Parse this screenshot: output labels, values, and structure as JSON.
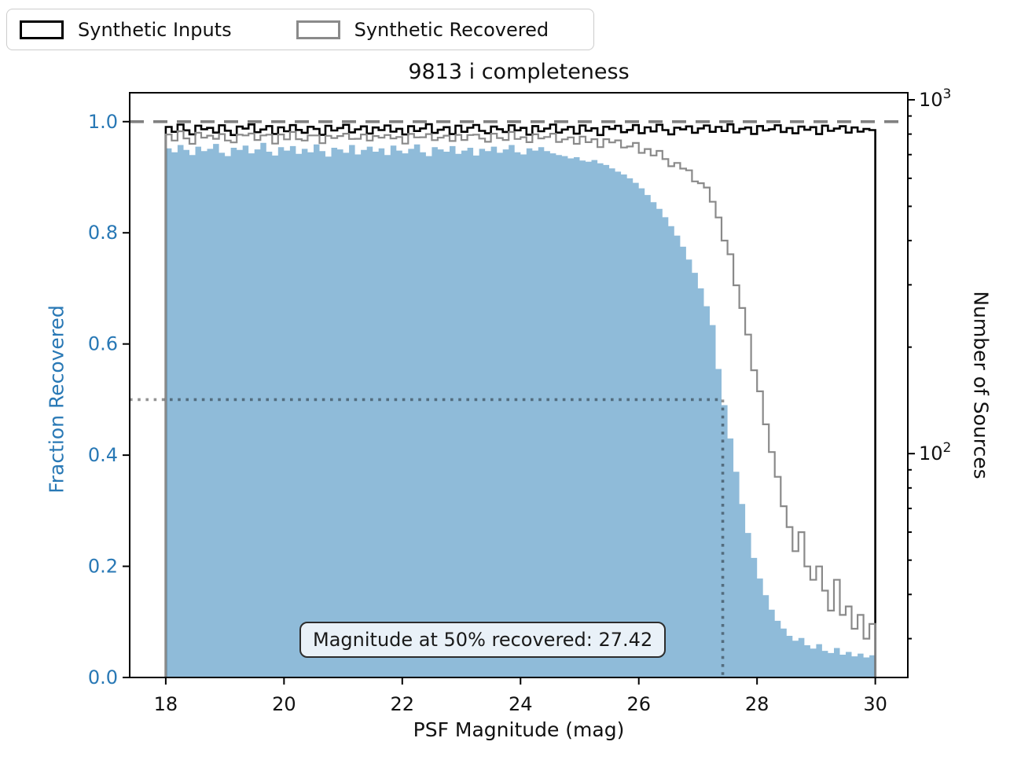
{
  "title": "9813 i completeness",
  "legend": {
    "items": [
      {
        "label": "Synthetic Inputs",
        "color": "#000000"
      },
      {
        "label": "Synthetic Recovered",
        "color": "#8a8a8a"
      }
    ]
  },
  "axes": {
    "x": {
      "label": "PSF Magnitude (mag)",
      "ticks": [
        18,
        20,
        22,
        24,
        26,
        28,
        30
      ],
      "range": [
        17.39,
        30.55
      ]
    },
    "y_left": {
      "label": "Fraction Recovered",
      "ticks": [
        0.0,
        0.2,
        0.4,
        0.6,
        0.8,
        1.0
      ],
      "range": [
        0,
        1.052
      ],
      "color": "#2878b5"
    },
    "y_right": {
      "label": "Number of Sources",
      "scale": "log",
      "range": [
        23.3,
        1047
      ],
      "major_ticks": [
        {
          "value": 1000,
          "base": "10",
          "exp": "3"
        },
        {
          "value": 100,
          "base": "10",
          "exp": "2"
        }
      ],
      "minor_ticks": [
        900,
        800,
        700,
        600,
        500,
        400,
        300,
        200,
        90,
        80,
        70,
        60,
        50,
        40,
        30,
        20
      ]
    }
  },
  "chart_data": {
    "type": "bar",
    "subtype": "histogram-with-step-outlines",
    "bins": {
      "start": 18.0,
      "width": 0.1,
      "count": 120
    },
    "series": [
      {
        "name": "Fraction Recovered",
        "axis": "left",
        "style": "filled-bar",
        "color": "#8FBBD9",
        "values": [
          0.952,
          0.945,
          0.958,
          0.949,
          0.94,
          0.955,
          0.947,
          0.951,
          0.96,
          0.944,
          0.938,
          0.953,
          0.949,
          0.957,
          0.943,
          0.95,
          0.962,
          0.946,
          0.939,
          0.954,
          0.948,
          0.956,
          0.942,
          0.951,
          0.945,
          0.959,
          0.947,
          0.937,
          0.953,
          0.95,
          0.944,
          0.958,
          0.941,
          0.949,
          0.955,
          0.946,
          0.952,
          0.94,
          0.957,
          0.948,
          0.943,
          0.951,
          0.959,
          0.945,
          0.938,
          0.954,
          0.95,
          0.946,
          0.956,
          0.942,
          0.948,
          0.953,
          0.939,
          0.951,
          0.947,
          0.955,
          0.944,
          0.95,
          0.958,
          0.945,
          0.941,
          0.952,
          0.948,
          0.954,
          0.947,
          0.943,
          0.94,
          0.938,
          0.934,
          0.936,
          0.93,
          0.928,
          0.931,
          0.925,
          0.922,
          0.916,
          0.91,
          0.905,
          0.898,
          0.89,
          0.88,
          0.868,
          0.855,
          0.843,
          0.828,
          0.812,
          0.795,
          0.775,
          0.752,
          0.728,
          0.7,
          0.668,
          0.634,
          0.555,
          0.49,
          0.43,
          0.37,
          0.312,
          0.26,
          0.215,
          0.178,
          0.148,
          0.122,
          0.102,
          0.088,
          0.075,
          0.066,
          0.071,
          0.058,
          0.052,
          0.06,
          0.048,
          0.044,
          0.053,
          0.041,
          0.046,
          0.038,
          0.043,
          0.036,
          0.04
        ]
      },
      {
        "name": "Synthetic Inputs",
        "axis": "right",
        "style": "step",
        "color": "#000000",
        "values": [
          838,
          812,
          851,
          820,
          799,
          845,
          826,
          833,
          808,
          847,
          818,
          795,
          840,
          829,
          852,
          810,
          824,
          843,
          801,
          836,
          815,
          848,
          822,
          807,
          839,
          827,
          796,
          844,
          819,
          832,
          850,
          809,
          825,
          841,
          803,
          835,
          821,
          846,
          813,
          828,
          798,
          842,
          816,
          830,
          853,
          806,
          823,
          837,
          800,
          845,
          812,
          834,
          849,
          817,
          804,
          840,
          826,
          811,
          847,
          820,
          833,
          797,
          843,
          815,
          829,
          851,
          808,
          824,
          838,
          802,
          846,
          818,
          831,
          795,
          839,
          827,
          844,
          810,
          822,
          848,
          805,
          836,
          814,
          850,
          821,
          799,
          834,
          825,
          841,
          807,
          830,
          846,
          812,
          838,
          816,
          852,
          809,
          828,
          835,
          801,
          843,
          819,
          826,
          847,
          811,
          832,
          804,
          840,
          823,
          837,
          800,
          845,
          817,
          829,
          842,
          808,
          835,
          813,
          827,
          821
        ]
      },
      {
        "name": "Synthetic Recovered",
        "axis": "right",
        "style": "step",
        "color": "#8a8a8a",
        "values": [
          798,
          767,
          815,
          778,
          751,
          807,
          782,
          792,
          776,
          800,
          767,
          758,
          797,
          793,
          803,
          770,
          793,
          797,
          752,
          798,
          773,
          811,
          774,
          767,
          793,
          793,
          754,
          791,
          780,
          790,
          802,
          775,
          776,
          798,
          767,
          790,
          782,
          795,
          778,
          785,
          752,
          801,
          783,
          784,
          800,
          769,
          782,
          792,
          765,
          796,
          770,
          795,
          797,
          777,
          761,
          802,
          780,
          770,
          811,
          775,
          784,
          759,
          799,
          778,
          785,
          802,
          760,
          773,
          783,
          751,
          787,
          759,
          774,
          735,
          774,
          758,
          768,
          733,
          738,
          755,
          708,
          726,
          696,
          717,
          680,
          649,
          663,
          639,
          632,
          588,
          581,
          565,
          515,
          465,
          400,
          366,
          299,
          258,
          217,
          172,
          150,
          121,
          101,
          86,
          71,
          62,
          53,
          60,
          48,
          44,
          48,
          41,
          36,
          44,
          35,
          37,
          32,
          35,
          30,
          33
        ]
      }
    ],
    "reference_lines": {
      "dashed_fraction": 1.0,
      "dotted_fraction": 0.5,
      "dotted_magnitude": 27.42,
      "dashed_color": "#808080",
      "dotted_color": "rgba(0,0,0,0.42)"
    },
    "annotation": {
      "text": "Magnitude at 50% recovered: 27.42"
    }
  }
}
